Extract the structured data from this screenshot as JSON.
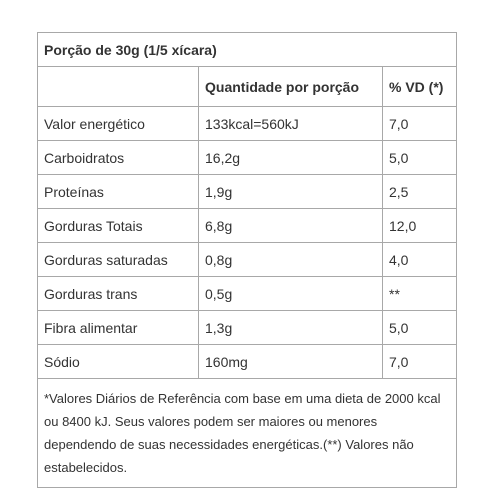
{
  "portion": "Porção de 30g (1/5 xícara)",
  "headers": {
    "nutrient": "",
    "quantity": "Quantidade por porção",
    "vd": "% VD (*)"
  },
  "rows": [
    {
      "name": "Valor energético",
      "quantity": "133kcal=560kJ",
      "vd": "7,0"
    },
    {
      "name": "Carboidratos",
      "quantity": "16,2g",
      "vd": "5,0"
    },
    {
      "name": "Proteínas",
      "quantity": "1,9g",
      "vd": "2,5"
    },
    {
      "name": "Gorduras Totais",
      "quantity": "6,8g",
      "vd": "12,0"
    },
    {
      "name": "Gorduras saturadas",
      "quantity": "0,8g",
      "vd": "4,0"
    },
    {
      "name": "Gorduras trans",
      "quantity": "0,5g",
      "vd": "**"
    },
    {
      "name": "Fibra alimentar",
      "quantity": "1,3g",
      "vd": "5,0"
    },
    {
      "name": "Sódio",
      "quantity": "160mg",
      "vd": "7,0"
    }
  ],
  "footnote": "*Valores Diários de Referência com base em uma dieta de 2000 kcal ou 8400 kJ. Seus valores podem ser maiores ou menores dependendo de suas necessidades energéticas.(**) Valores não estabelecidos."
}
